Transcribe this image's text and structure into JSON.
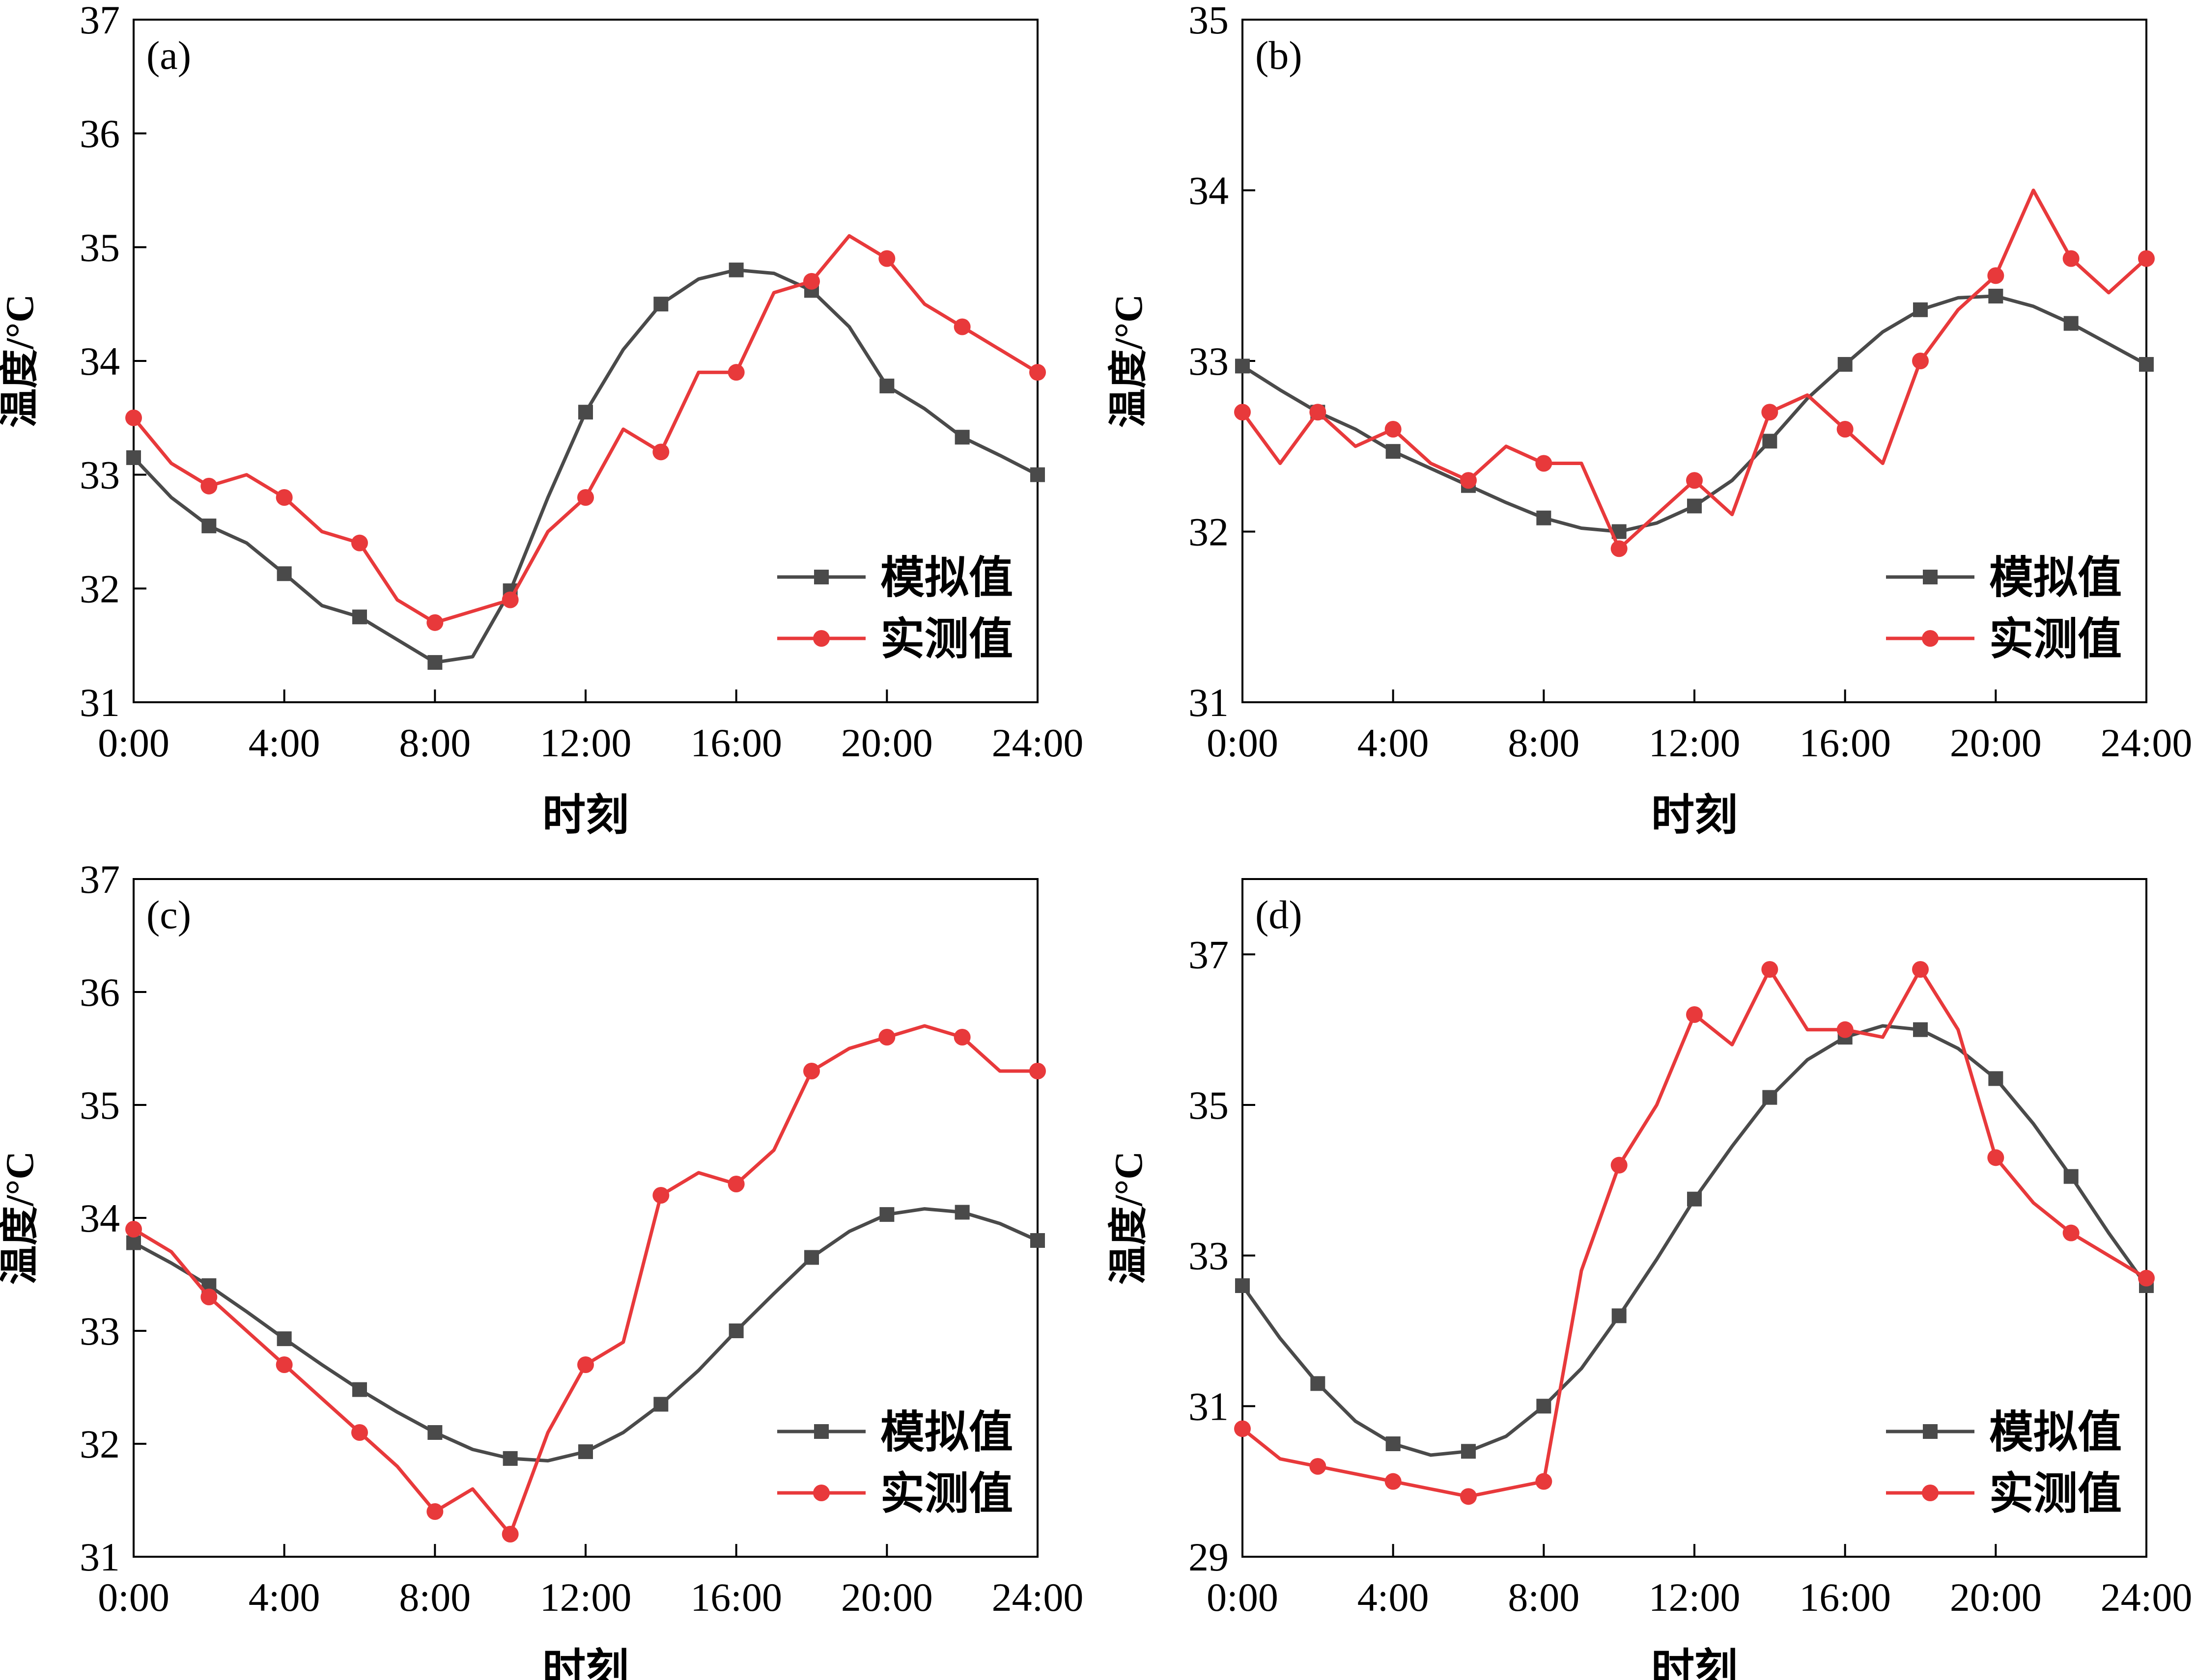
{
  "x_tick_labels": [
    "0:00",
    "4:00",
    "8:00",
    "12:00",
    "16:00",
    "20:00",
    "24:00"
  ],
  "x_label": "时刻",
  "y_label": "温度/°C",
  "legend": {
    "simulated": "模拟值",
    "measured": "实测值"
  },
  "colors": {
    "simulated": "#4a4a4a",
    "measured": "#e8393b"
  },
  "chart_data": [
    {
      "type": "line",
      "panel": "(a)",
      "xlabel": "时刻",
      "ylabel": "温度/°C",
      "xlim": [
        0,
        24
      ],
      "ylim": [
        31,
        37
      ],
      "yticks": [
        31,
        32,
        33,
        34,
        35,
        36,
        37
      ],
      "legend_position": "lower-right",
      "series": [
        {
          "name": "模拟值",
          "marker": "square",
          "x": [
            0,
            1,
            2,
            3,
            4,
            5,
            6,
            7,
            8,
            9,
            10,
            11,
            12,
            13,
            14,
            15,
            16,
            17,
            18,
            19,
            20,
            21,
            22,
            23,
            24
          ],
          "y": [
            33.15,
            32.8,
            32.55,
            32.4,
            32.13,
            31.85,
            31.75,
            31.55,
            31.35,
            31.4,
            31.98,
            32.8,
            33.55,
            34.1,
            34.5,
            34.72,
            34.8,
            34.77,
            34.62,
            34.3,
            33.78,
            33.58,
            33.33,
            33.17,
            33.0
          ],
          "marker_x": [
            0,
            2,
            4,
            6,
            8,
            10,
            12,
            14,
            16,
            18,
            20,
            22,
            24
          ]
        },
        {
          "name": "实测值",
          "marker": "circle",
          "x": [
            0,
            1,
            2,
            3,
            4,
            5,
            6,
            7,
            8,
            9,
            10,
            11,
            12,
            13,
            14,
            15,
            16,
            17,
            18,
            19,
            20,
            21,
            22,
            23,
            24
          ],
          "y": [
            33.5,
            33.1,
            32.9,
            33.0,
            32.8,
            32.5,
            32.4,
            31.9,
            31.7,
            31.8,
            31.9,
            32.5,
            32.8,
            33.4,
            33.2,
            33.9,
            33.9,
            34.6,
            34.7,
            35.1,
            34.9,
            34.5,
            34.3,
            34.1,
            33.9
          ],
          "marker_x": [
            0,
            2,
            4,
            6,
            8,
            10,
            12,
            14,
            16,
            18,
            20,
            22,
            24
          ]
        }
      ]
    },
    {
      "type": "line",
      "panel": "(b)",
      "xlabel": "时刻",
      "ylabel": "温度/°C",
      "xlim": [
        0,
        24
      ],
      "ylim": [
        31,
        35
      ],
      "yticks": [
        31,
        32,
        33,
        34,
        35
      ],
      "legend_position": "lower-right",
      "series": [
        {
          "name": "模拟值",
          "marker": "square",
          "x": [
            0,
            1,
            2,
            3,
            4,
            5,
            6,
            7,
            8,
            9,
            10,
            11,
            12,
            13,
            14,
            15,
            16,
            17,
            18,
            19,
            20,
            21,
            22,
            23,
            24
          ],
          "y": [
            32.97,
            32.83,
            32.7,
            32.6,
            32.47,
            32.37,
            32.27,
            32.17,
            32.08,
            32.02,
            32.0,
            32.05,
            32.15,
            32.3,
            32.53,
            32.78,
            32.98,
            33.17,
            33.3,
            33.37,
            33.38,
            33.32,
            33.22,
            33.1,
            32.98
          ],
          "marker_x": [
            0,
            2,
            4,
            6,
            8,
            10,
            12,
            14,
            16,
            18,
            20,
            22,
            24
          ]
        },
        {
          "name": "实测值",
          "marker": "circle",
          "x": [
            0,
            1,
            2,
            3,
            4,
            5,
            6,
            7,
            8,
            9,
            10,
            11,
            12,
            13,
            14,
            15,
            16,
            17,
            18,
            19,
            20,
            21,
            22,
            23,
            24
          ],
          "y": [
            32.7,
            32.4,
            32.7,
            32.5,
            32.6,
            32.4,
            32.3,
            32.5,
            32.4,
            32.4,
            31.9,
            32.1,
            32.3,
            32.1,
            32.7,
            32.8,
            32.6,
            32.4,
            33.0,
            33.3,
            33.5,
            34.0,
            33.6,
            33.4,
            33.6
          ],
          "marker_x": [
            0,
            2,
            4,
            6,
            8,
            10,
            12,
            14,
            16,
            18,
            20,
            22,
            24
          ]
        }
      ]
    },
    {
      "type": "line",
      "panel": "(c)",
      "xlabel": "时刻",
      "ylabel": "温度/°C",
      "xlim": [
        0,
        24
      ],
      "ylim": [
        31,
        37
      ],
      "yticks": [
        31,
        32,
        33,
        34,
        35,
        36,
        37
      ],
      "legend_position": "lower-right",
      "series": [
        {
          "name": "模拟值",
          "marker": "square",
          "x": [
            0,
            1,
            2,
            3,
            4,
            5,
            6,
            7,
            8,
            9,
            10,
            11,
            12,
            13,
            14,
            15,
            16,
            17,
            18,
            19,
            20,
            21,
            22,
            23,
            24
          ],
          "y": [
            33.78,
            33.6,
            33.4,
            33.17,
            32.93,
            32.7,
            32.48,
            32.28,
            32.1,
            31.95,
            31.87,
            31.85,
            31.93,
            32.1,
            32.35,
            32.65,
            33.0,
            33.33,
            33.65,
            33.88,
            34.03,
            34.08,
            34.05,
            33.95,
            33.8
          ],
          "marker_x": [
            0,
            2,
            4,
            6,
            8,
            10,
            12,
            14,
            16,
            18,
            20,
            22,
            24
          ]
        },
        {
          "name": "实测值",
          "marker": "circle",
          "x": [
            0,
            1,
            2,
            3,
            4,
            5,
            6,
            7,
            8,
            9,
            10,
            11,
            12,
            13,
            14,
            15,
            16,
            17,
            18,
            19,
            20,
            21,
            22,
            23,
            24
          ],
          "y": [
            33.9,
            33.7,
            33.3,
            33.0,
            32.7,
            32.4,
            32.1,
            31.8,
            31.4,
            31.6,
            31.2,
            32.1,
            32.7,
            32.9,
            34.2,
            34.4,
            34.3,
            34.6,
            35.3,
            35.5,
            35.6,
            35.7,
            35.6,
            35.3,
            35.3
          ],
          "marker_x": [
            0,
            2,
            4,
            6,
            8,
            10,
            12,
            14,
            16,
            18,
            20,
            22,
            24
          ]
        }
      ]
    },
    {
      "type": "line",
      "panel": "(d)",
      "xlabel": "时刻",
      "ylabel": "温度/°C",
      "xlim": [
        0,
        24
      ],
      "ylim": [
        29,
        38
      ],
      "yticks": [
        29,
        31,
        33,
        35,
        37
      ],
      "legend_position": "lower-right",
      "series": [
        {
          "name": "模拟值",
          "marker": "square",
          "x": [
            0,
            1,
            2,
            3,
            4,
            5,
            6,
            7,
            8,
            9,
            10,
            11,
            12,
            13,
            14,
            15,
            16,
            17,
            18,
            19,
            20,
            21,
            22,
            23,
            24
          ],
          "y": [
            32.6,
            31.9,
            31.3,
            30.8,
            30.5,
            30.35,
            30.4,
            30.6,
            31.0,
            31.5,
            32.2,
            32.95,
            33.75,
            34.45,
            35.1,
            35.6,
            35.9,
            36.05,
            36.0,
            35.75,
            35.35,
            34.75,
            34.05,
            33.3,
            32.6
          ],
          "marker_x": [
            0,
            2,
            4,
            6,
            8,
            10,
            12,
            14,
            16,
            18,
            20,
            22,
            24
          ]
        },
        {
          "name": "实测值",
          "marker": "circle",
          "x": [
            0,
            1,
            2,
            3,
            4,
            5,
            6,
            7,
            8,
            9,
            10,
            11,
            12,
            13,
            14,
            15,
            16,
            17,
            18,
            19,
            20,
            21,
            22,
            23,
            24
          ],
          "y": [
            30.7,
            30.3,
            30.2,
            30.1,
            30.0,
            29.9,
            29.8,
            29.9,
            30.0,
            32.8,
            34.2,
            35.0,
            36.2,
            35.8,
            36.8,
            36.0,
            36.0,
            35.9,
            36.8,
            36.0,
            34.3,
            33.7,
            33.3,
            33.0,
            32.7
          ],
          "marker_x": [
            0,
            2,
            4,
            6,
            8,
            10,
            12,
            14,
            16,
            18,
            20,
            22,
            24
          ]
        }
      ]
    }
  ]
}
